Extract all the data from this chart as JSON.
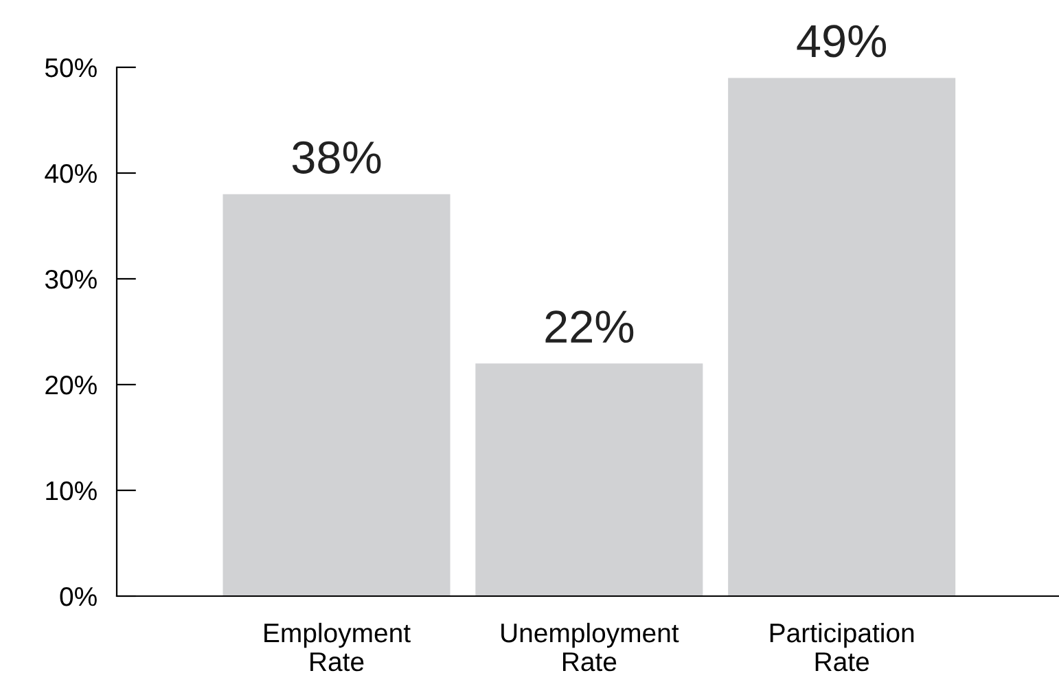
{
  "chart_data": {
    "type": "bar",
    "categories": [
      "Employment\nRate",
      "Unemployment\nRate",
      "Participation\nRate"
    ],
    "values": [
      38,
      22,
      49
    ],
    "color": "#d1d2d4",
    "ylim": [
      0,
      50
    ],
    "yticks": [
      {
        "value": 0,
        "label": "0%"
      },
      {
        "value": 10,
        "label": "10%"
      },
      {
        "value": 20,
        "label": "20%"
      },
      {
        "value": 30,
        "label": "30%"
      },
      {
        "value": 40,
        "label": "40%"
      },
      {
        "value": 50,
        "label": "50%"
      }
    ],
    "value_labels": [
      "38%",
      "22%",
      "49%"
    ],
    "grid": false,
    "legend": false
  }
}
